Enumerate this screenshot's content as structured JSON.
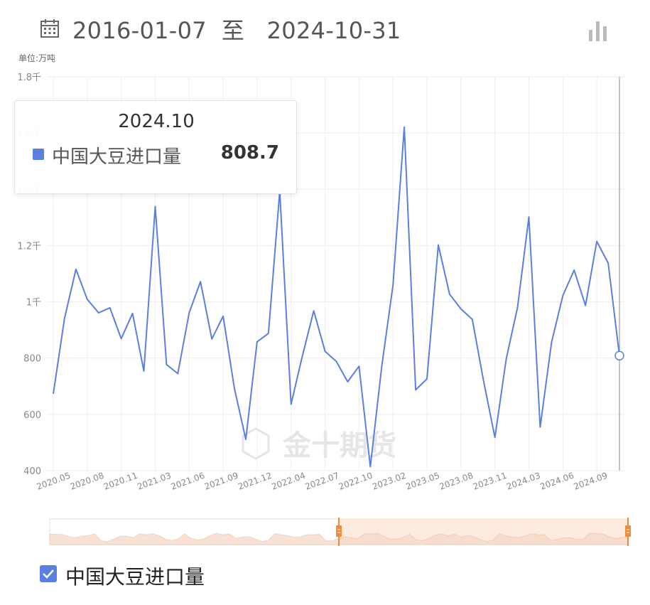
{
  "header": {
    "date_range": "2016-01-07  至   2024-10-31",
    "calendar_icon": "calendar-icon",
    "chart_type_icon": "bar-chart-icon"
  },
  "unit_label": "单位:万吨",
  "watermark": "金十期货",
  "tooltip": {
    "title": "2024.10",
    "series_name": "中国大豆进口量",
    "value": "808.7"
  },
  "legend": {
    "label": "中国大豆进口量",
    "checked": true
  },
  "colors": {
    "line": "#5b7fe0",
    "grid": "#eeeeee",
    "axis_text": "#888888",
    "slider_handle": "#f08a3c",
    "slider_fill": "#fde6d8"
  },
  "chart_data": {
    "type": "line",
    "title": "",
    "xlabel": "",
    "ylabel": "单位:万吨",
    "ylim": [
      400,
      1800
    ],
    "y_ticks": [
      "400",
      "600",
      "800",
      "1千",
      "1.2千",
      "1.4千",
      "1.6千",
      "1.8千"
    ],
    "x_tick_labels": [
      "2020.05",
      "2020.08",
      "2020.11",
      "2021.03",
      "2021.06",
      "2021.09",
      "2021.12",
      "2022.04",
      "2022.07",
      "2022.10",
      "2023.02",
      "2023.05",
      "2023.08",
      "2023.11",
      "2024.03",
      "2024.06",
      "2024.09"
    ],
    "x": [
      "2020.04",
      "2020.05",
      "2020.06",
      "2020.07",
      "2020.08",
      "2020.09",
      "2020.10",
      "2020.11",
      "2020.12",
      "2021.01",
      "2021.03",
      "2021.04",
      "2021.05",
      "2021.06",
      "2021.07",
      "2021.08",
      "2021.09",
      "2021.10",
      "2021.11",
      "2021.12",
      "2022.01",
      "2022.03",
      "2022.04",
      "2022.05",
      "2022.06",
      "2022.07",
      "2022.08",
      "2022.09",
      "2022.10",
      "2022.11",
      "2022.12",
      "2023.01",
      "2023.03",
      "2023.04",
      "2023.05",
      "2023.06",
      "2023.07",
      "2023.08",
      "2023.09",
      "2023.10",
      "2023.11",
      "2023.12",
      "2024.01",
      "2024.03",
      "2024.04",
      "2024.05",
      "2024.06",
      "2024.07",
      "2024.08",
      "2024.09",
      "2024.10"
    ],
    "series": [
      {
        "name": "中国大豆进口量",
        "values": [
          673,
          942,
          1116,
          1009,
          961,
          979,
          869,
          959,
          754,
          1339,
          777,
          745,
          961,
          1072,
          868,
          949,
          692,
          511,
          858,
          888,
          1394,
          636,
          808,
          968,
          824,
          788,
          716,
          771,
          414,
          769,
          1059,
          1621,
          687,
          726,
          1202,
          1027,
          975,
          938,
          719,
          518,
          797,
          980,
          1302,
          555,
          856,
          1022,
          1113,
          987,
          1215,
          1138,
          808.7
        ]
      }
    ],
    "slider": {
      "start_percent": 50,
      "end_percent": 100
    },
    "grid": true,
    "legend_position": "bottom-left"
  }
}
